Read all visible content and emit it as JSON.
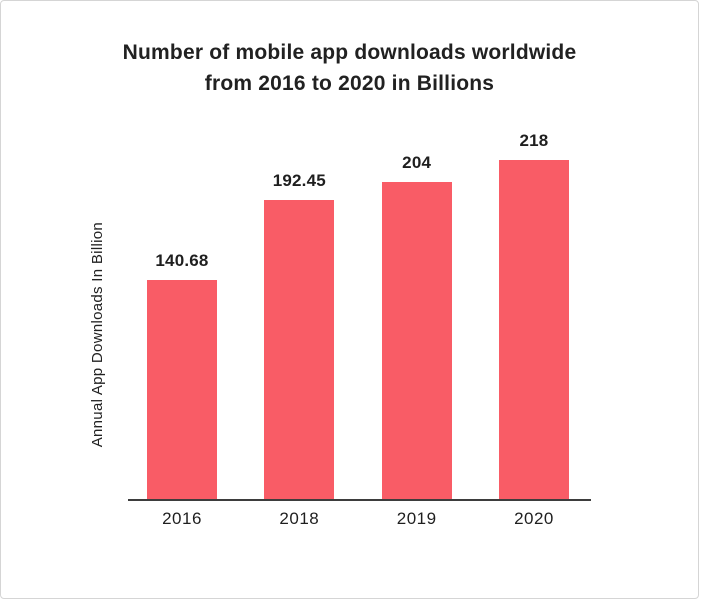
{
  "page": {
    "background_color": "#ffffff",
    "border_color": "#d5d5d5"
  },
  "chart_data": {
    "type": "bar",
    "title": "Number of mobile app downloads worldwide from 2016 to 2020 in Billions",
    "title_lines": [
      "Number of mobile app downloads worldwide",
      "from 2016 to 2020 in Billions"
    ],
    "categories": [
      "2016",
      "2018",
      "2019",
      "2020"
    ],
    "values": [
      140.68,
      192.45,
      204,
      218
    ],
    "value_labels": [
      "140.68",
      "192.45",
      "204",
      "218"
    ],
    "xlabel": "",
    "ylabel": "Annual App Downloads In Billion",
    "ylim": [
      0,
      225
    ],
    "grid": false,
    "legend": "none",
    "bar_color": "#F95C66",
    "axis_color": "#3d3d3d",
    "text_color": "#212121"
  }
}
